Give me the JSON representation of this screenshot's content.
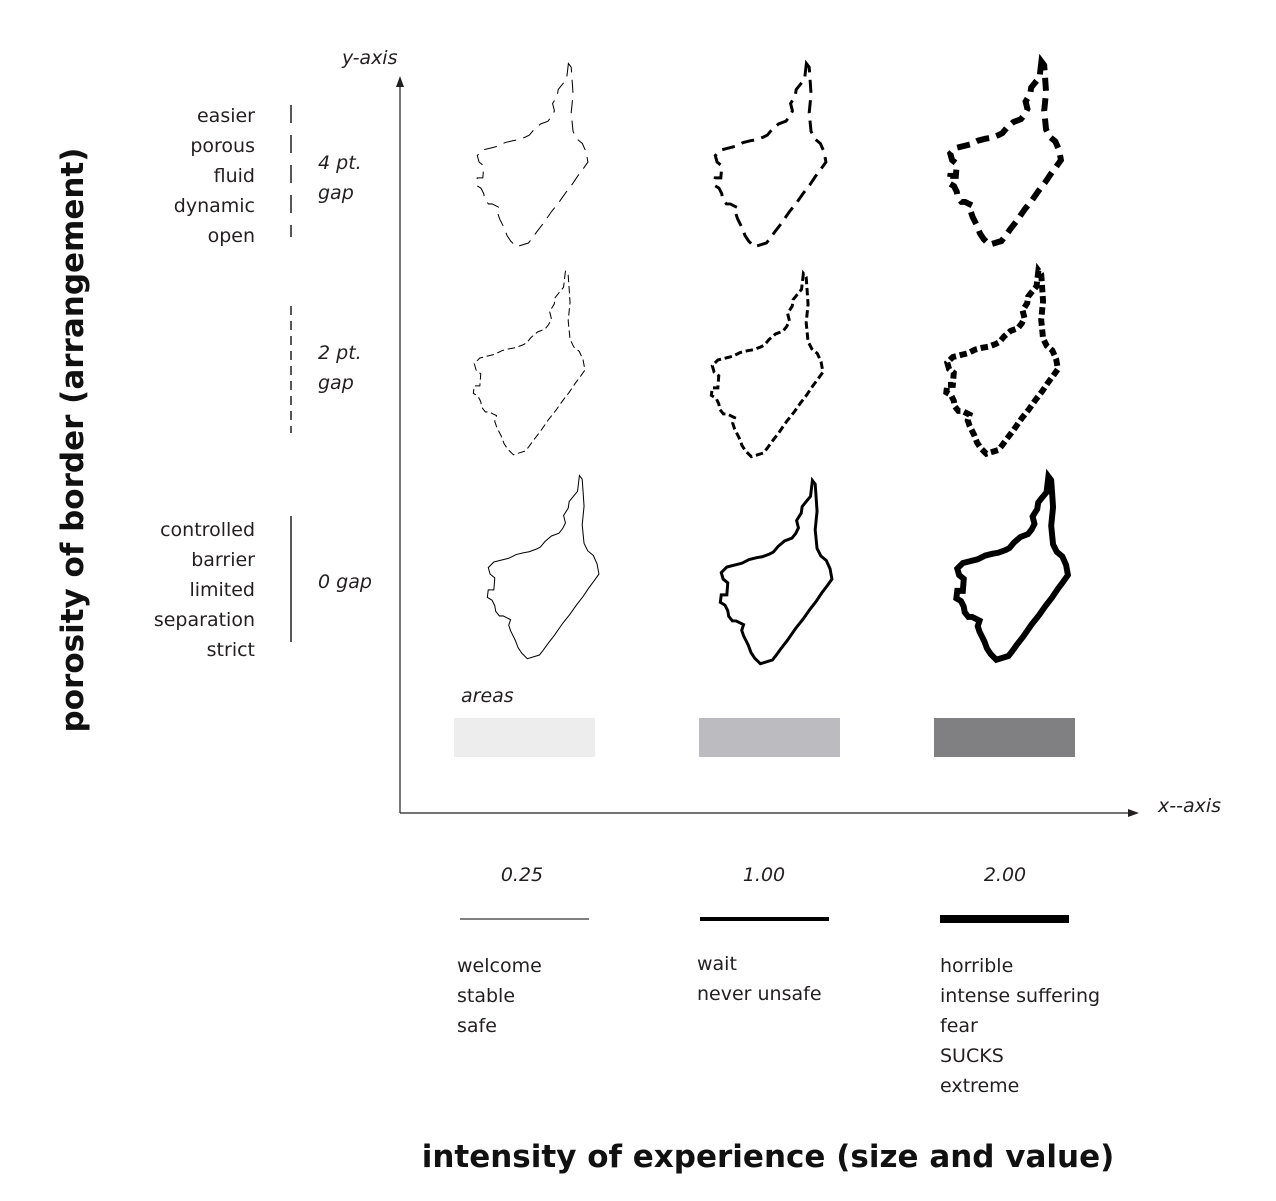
{
  "y_axis_title": "porosity of border (arrangement)",
  "x_axis_title": "intensity of experience (size and value)",
  "y_axis_label": "y-axis",
  "x_axis_label": "x--axis",
  "porous_terms": [
    "easier",
    "porous",
    "fluid",
    "dynamic",
    "open"
  ],
  "controlled_terms": [
    "controlled",
    "barrier",
    "limited",
    "separation",
    "strict"
  ],
  "gap_rows": [
    {
      "label_line1": "4 pt.",
      "label_line2": "gap",
      "style": "dashed-large"
    },
    {
      "label_line1": "2 pt.",
      "label_line2": "gap",
      "style": "dashed-small"
    },
    {
      "label_line1": "0 gap",
      "label_line2": "",
      "style": "solid"
    }
  ],
  "areas_label": "areas",
  "columns": [
    {
      "weight": "0.25",
      "area_color": "#ededed",
      "experiences": [
        "welcome",
        "stable",
        "safe"
      ]
    },
    {
      "weight": "1.00",
      "area_color": "#bcbcc0",
      "experiences": [
        "wait",
        "never unsafe"
      ]
    },
    {
      "weight": "2.00",
      "area_color": "#808083",
      "experiences": [
        "horrible",
        "intense suffering",
        "fear",
        "SUCKS",
        "extreme"
      ]
    }
  ],
  "colors": {
    "ink": "#231f20",
    "shape_stroke": "#000000"
  }
}
